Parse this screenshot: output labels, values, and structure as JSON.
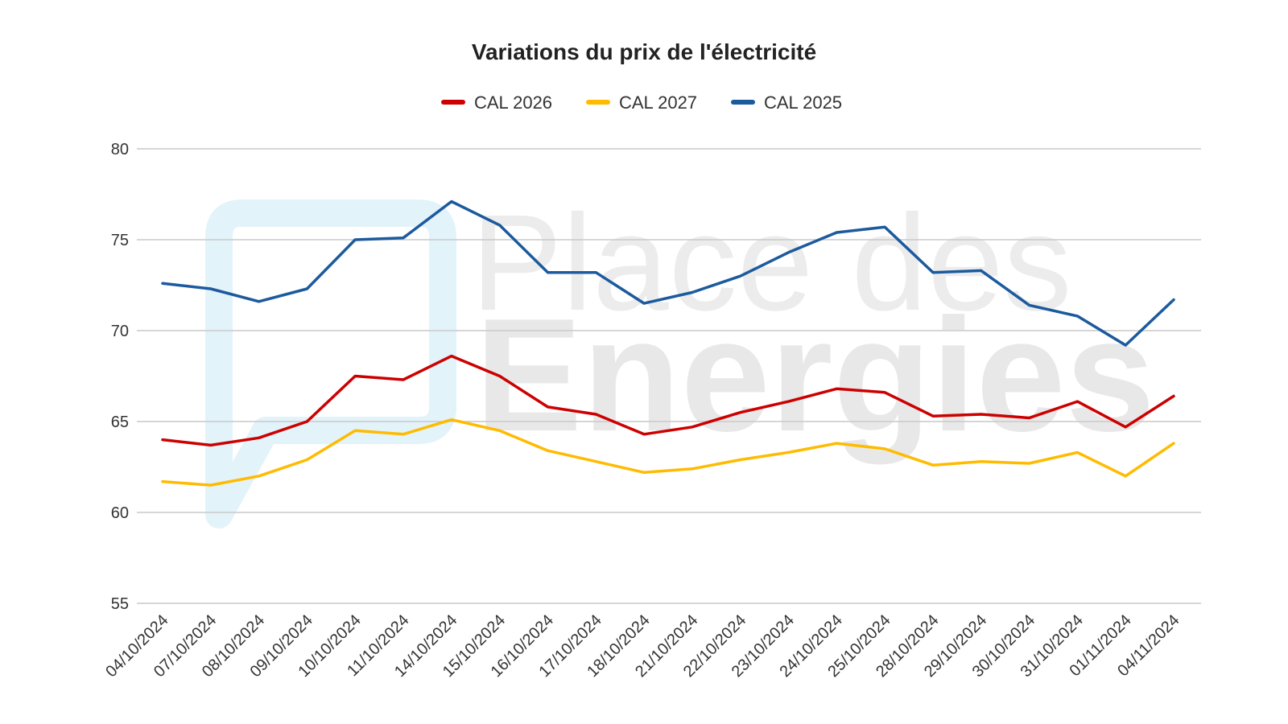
{
  "watermark": {
    "line1": "Place des",
    "line2": "Energies",
    "logo_icon": "speech-bubble-logo",
    "logo_color": "#e3f3fa"
  },
  "chart_data": {
    "type": "line",
    "title": "Variations du prix de l'électricité",
    "xlabel": "",
    "ylabel": "",
    "ylim": [
      55,
      80
    ],
    "yticks": [
      55,
      60,
      65,
      70,
      75,
      80
    ],
    "grid": true,
    "legend_position": "top",
    "categories": [
      "04/10/2024",
      "07/10/2024",
      "08/10/2024",
      "09/10/2024",
      "10/10/2024",
      "11/10/2024",
      "14/10/2024",
      "15/10/2024",
      "16/10/2024",
      "17/10/2024",
      "18/10/2024",
      "21/10/2024",
      "22/10/2024",
      "23/10/2024",
      "24/10/2024",
      "25/10/2024",
      "28/10/2024",
      "29/10/2024",
      "30/10/2024",
      "31/10/2024",
      "01/11/2024",
      "04/11/2024"
    ],
    "series": [
      {
        "name": "CAL 2026",
        "color": "#cc0000",
        "values": [
          64.0,
          63.7,
          64.1,
          65.0,
          67.5,
          67.3,
          68.6,
          67.5,
          65.8,
          65.4,
          64.3,
          64.7,
          65.5,
          66.1,
          66.8,
          66.6,
          65.3,
          65.4,
          65.2,
          66.1,
          64.7,
          66.4
        ]
      },
      {
        "name": "CAL 2027",
        "color": "#ffbb00",
        "values": [
          61.7,
          61.5,
          62.0,
          62.9,
          64.5,
          64.3,
          65.1,
          64.5,
          63.4,
          62.8,
          62.2,
          62.4,
          62.9,
          63.3,
          63.8,
          63.5,
          62.6,
          62.8,
          62.7,
          63.3,
          62.0,
          63.8
        ]
      },
      {
        "name": "CAL 2025",
        "color": "#1c5a9e",
        "values": [
          72.6,
          72.3,
          71.6,
          72.3,
          75.0,
          75.1,
          77.1,
          75.8,
          73.2,
          73.2,
          71.5,
          72.1,
          73.0,
          74.3,
          75.4,
          75.7,
          73.2,
          73.3,
          71.4,
          70.8,
          69.2,
          71.7
        ]
      }
    ]
  }
}
